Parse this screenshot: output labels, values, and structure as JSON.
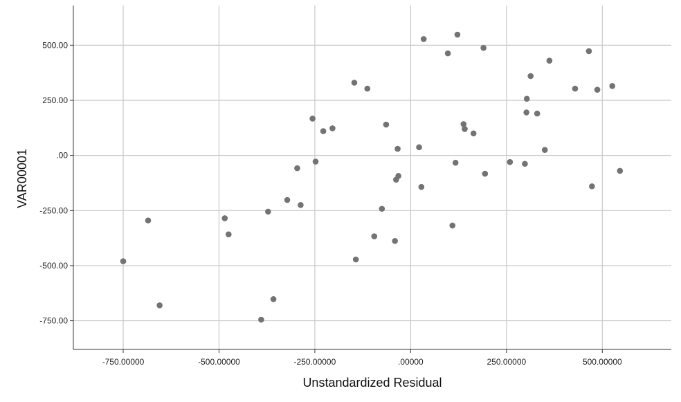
{
  "chart_data": {
    "type": "scatter",
    "title": "",
    "xlabel": "Unstandardized Residual",
    "ylabel": "VAR00001",
    "xlim": [
      -880,
      680
    ],
    "ylim": [
      -880,
      680
    ],
    "x_ticks": [
      -750,
      -500,
      -250,
      0,
      250,
      500
    ],
    "x_tick_labels": [
      "-750.00000",
      "-500.00000",
      "-250.00000",
      ".00000",
      "250.00000",
      "500.00000"
    ],
    "y_ticks": [
      500,
      250,
      0,
      -250,
      -500,
      -750
    ],
    "y_tick_labels": [
      "500.00",
      "250.00",
      ".00",
      "-250.00",
      "-500.00",
      "-750.00"
    ],
    "grid": true,
    "marker_color": "#737373",
    "grid_color": "#c8c8c8",
    "series": [
      {
        "points": [
          [
            -750,
            -480
          ],
          [
            -685,
            -295
          ],
          [
            -655,
            -680
          ],
          [
            -485,
            -285
          ],
          [
            -475,
            -358
          ],
          [
            -390,
            -745
          ],
          [
            -372,
            -255
          ],
          [
            -358,
            -652
          ],
          [
            -322,
            -202
          ],
          [
            -296,
            -58
          ],
          [
            -287,
            -225
          ],
          [
            -256,
            167
          ],
          [
            -248,
            -28
          ],
          [
            -228,
            110
          ],
          [
            -204,
            123
          ],
          [
            -147,
            330
          ],
          [
            -143,
            -472
          ],
          [
            -113,
            303
          ],
          [
            -95,
            -367
          ],
          [
            -75,
            -242
          ],
          [
            -64,
            140
          ],
          [
            -41,
            -388
          ],
          [
            -38,
            -110
          ],
          [
            -34,
            30
          ],
          [
            -32,
            -93
          ],
          [
            22,
            37
          ],
          [
            28,
            -143
          ],
          [
            34,
            528
          ],
          [
            97,
            463
          ],
          [
            109,
            -318
          ],
          [
            117,
            -33
          ],
          [
            122,
            548
          ],
          [
            138,
            142
          ],
          [
            141,
            120
          ],
          [
            164,
            100
          ],
          [
            190,
            488
          ],
          [
            194,
            -83
          ],
          [
            259,
            -30
          ],
          [
            298,
            -38
          ],
          [
            302,
            195
          ],
          [
            303,
            257
          ],
          [
            313,
            360
          ],
          [
            330,
            190
          ],
          [
            350,
            25
          ],
          [
            362,
            430
          ],
          [
            429,
            303
          ],
          [
            465,
            473
          ],
          [
            473,
            -140
          ],
          [
            487,
            298
          ],
          [
            526,
            315
          ],
          [
            546,
            -70
          ]
        ]
      }
    ]
  }
}
